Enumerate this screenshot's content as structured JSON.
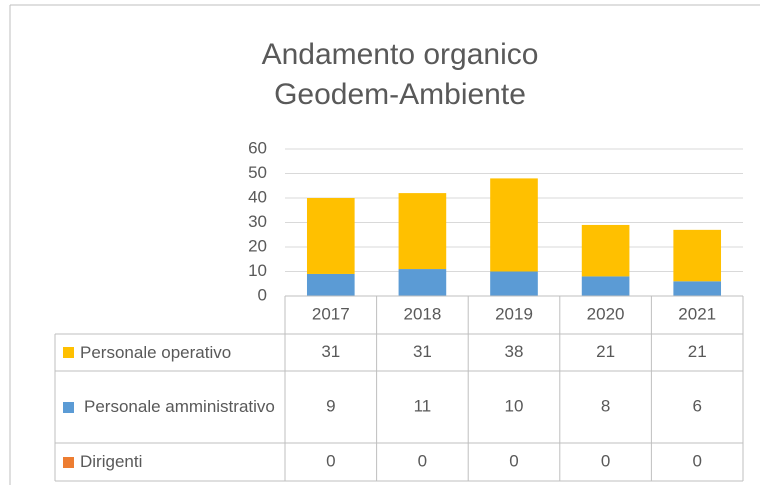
{
  "chart_data": {
    "type": "stacked_bar",
    "title": "Andamento organico Geodem-Ambiente",
    "categories": [
      "2017",
      "2018",
      "2019",
      "2020",
      "2021"
    ],
    "series": [
      {
        "name": "Personale operativo",
        "color": "#ffc000",
        "values": [
          31,
          31,
          38,
          21,
          21
        ]
      },
      {
        "name": "Personale amministrativo",
        "color": "#5b9bd5",
        "values": [
          9,
          11,
          10,
          8,
          6
        ]
      },
      {
        "name": "Dirigenti",
        "color": "#ed7d31",
        "values": [
          0,
          0,
          0,
          0,
          0
        ]
      }
    ],
    "ylim": [
      0,
      60
    ],
    "yticks": [
      0,
      10,
      20,
      30,
      40,
      50,
      60
    ],
    "grid": true,
    "data_table": true
  }
}
